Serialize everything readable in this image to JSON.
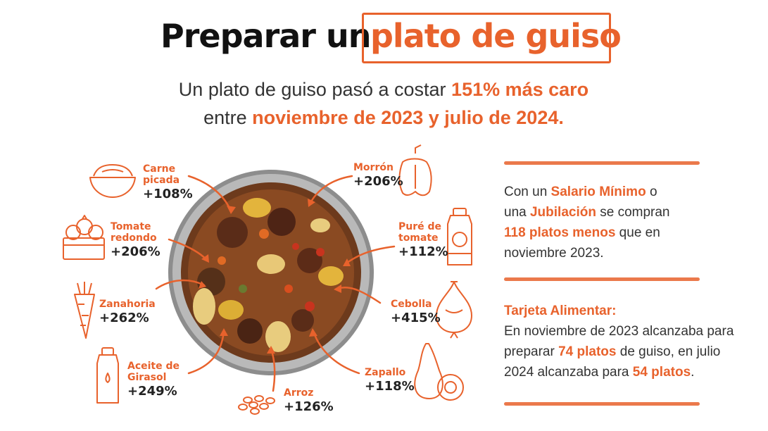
{
  "title": {
    "part1": "Preparar un",
    "part2": "plato de guiso"
  },
  "subtitle": {
    "line1_pre": "Un plato de guiso pasó a costar ",
    "line1_hl": "151% más caro",
    "line2_pre": "entre ",
    "line2_hl": "noviembre de 2023 y julio de 2024."
  },
  "ingredients": {
    "carne": {
      "name": "Carne picada",
      "pct": "+108%",
      "icon": "bowl-icon"
    },
    "tomate": {
      "name": "Tomate redondo",
      "pct": "+206%",
      "icon": "tomato-basket-icon"
    },
    "zanahoria": {
      "name": "Zanahoria",
      "pct": "+262%",
      "icon": "carrot-icon"
    },
    "aceite": {
      "name": "Aceite de Girasol",
      "pct": "+249%",
      "icon": "oil-bottle-icon"
    },
    "arroz": {
      "name": "Arroz",
      "pct": "+126%",
      "icon": "rice-icon"
    },
    "zapallo": {
      "name": "Zapallo",
      "pct": "+118%",
      "icon": "squash-icon"
    },
    "cebolla": {
      "name": "Cebolla",
      "pct": "+415%",
      "icon": "onion-icon"
    },
    "pure": {
      "name": "Puré de tomate",
      "pct": "+112%",
      "icon": "tomato-puree-icon"
    },
    "morron": {
      "name": "Morrón",
      "pct": "+206%",
      "icon": "pepper-icon"
    }
  },
  "salario": {
    "t1": "Con un ",
    "h1": "Salario Mínimo",
    "t2": " o",
    "t3": "una ",
    "h2": "Jubilación",
    "t4": " se compran",
    "h3": "118 platos menos",
    "t5": " que en",
    "t6": "noviembre 2023."
  },
  "tarjeta": {
    "heading": "Tarjeta Alimentar:",
    "l1": "En noviembre de 2023 alcanzaba para",
    "l2_pre": "preparar ",
    "l2_hl": "74 platos",
    "l2_post": " de guiso, en julio",
    "l3_pre": "2024 alcanzaba para ",
    "l3_hl": "54 platos",
    "l3_post": "."
  },
  "colors": {
    "accent": "#e8622c",
    "text": "#222222"
  }
}
